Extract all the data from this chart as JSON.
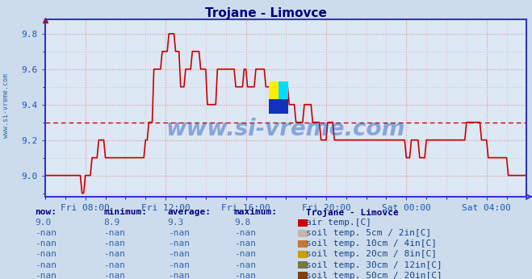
{
  "title": "Trojane - Limovce",
  "title_color": "#000080",
  "bg_color": "#ccdcec",
  "plot_bg_color": "#dce8f4",
  "line_color": "#cc0000",
  "avg_value": 9.3,
  "ymin": 8.88,
  "ymax": 9.88,
  "yticks": [
    9.0,
    9.2,
    9.4,
    9.6,
    9.8
  ],
  "ytick_labels": [
    "9.0",
    "9.2",
    "9.4",
    "9.6",
    "9.8"
  ],
  "xlabel_color": "#2255aa",
  "ylabel_color": "#2255aa",
  "axis_color": "#3333cc",
  "watermark": "www.si-vreme.com",
  "watermark_color": "#2255bb",
  "legend_title": "Trojane - Limovce",
  "legend_entries": [
    {
      "label": "air temp.[C]",
      "color": "#cc0000"
    },
    {
      "label": "soil temp. 5cm / 2in[C]",
      "color": "#c8b4aa"
    },
    {
      "label": "soil temp. 10cm / 4in[C]",
      "color": "#c87832"
    },
    {
      "label": "soil temp. 20cm / 8in[C]",
      "color": "#c8a000"
    },
    {
      "label": "soil temp. 30cm / 12in[C]",
      "color": "#787840"
    },
    {
      "label": "soil temp. 50cm / 20in[C]",
      "color": "#804010"
    }
  ],
  "table_headers": [
    "now:",
    "minimum:",
    "average:",
    "maximum:"
  ],
  "table_row1": [
    "9.0",
    "8.9",
    "9.3",
    "9.8"
  ],
  "table_rows_nan": [
    [
      "-nan",
      "-nan",
      "-nan",
      "-nan"
    ],
    [
      "-nan",
      "-nan",
      "-nan",
      "-nan"
    ],
    [
      "-nan",
      "-nan",
      "-nan",
      "-nan"
    ],
    [
      "-nan",
      "-nan",
      "-nan",
      "-nan"
    ],
    [
      "-nan",
      "-nan",
      "-nan",
      "-nan"
    ]
  ],
  "x_tick_labels": [
    "Fri 08:00",
    "Fri 12:00",
    "Fri 16:00",
    "Fri 20:00",
    "Sat 00:00",
    "Sat 04:00"
  ]
}
